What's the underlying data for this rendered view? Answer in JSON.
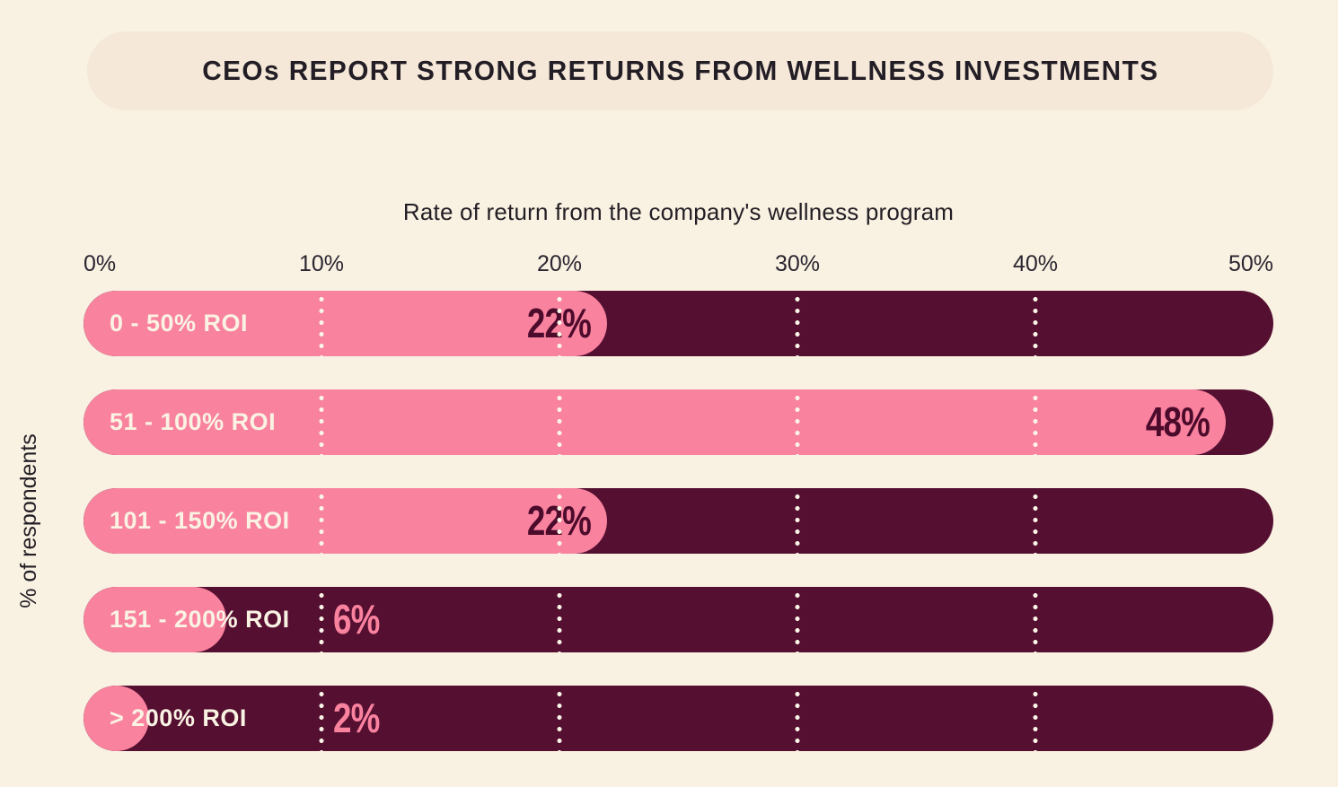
{
  "header": {
    "title": "CEOs REPORT STRONG RETURNS FROM WELLNESS INVESTMENTS"
  },
  "chart_data": {
    "type": "bar",
    "orientation": "horizontal",
    "title": "CEOs REPORT STRONG RETURNS FROM WELLNESS INVESTMENTS",
    "xlabel": "Rate of return from the company's wellness program",
    "ylabel": "% of respondents",
    "categories": [
      "0 - 50% ROI",
      "51 - 100% ROI",
      "101 - 150% ROI",
      "151 - 200% ROI",
      "> 200% ROI"
    ],
    "values": [
      22,
      48,
      22,
      6,
      2
    ],
    "value_labels": [
      "22%",
      "48%",
      "22%",
      "6%",
      "2%"
    ],
    "xlim": [
      0,
      50
    ],
    "x_ticks": [
      "0%",
      "10%",
      "20%",
      "30%",
      "40%",
      "50%"
    ],
    "grid": "vertical dotted white lines at 10%, 20%, 30%, 40%",
    "legend": "none",
    "colors": {
      "background": "#F9F2E2",
      "title_banner": "#F5E8D9",
      "bar_track": "#550F31",
      "bar_fill": "#F9829F",
      "category_text": "#FAF3E3",
      "value_text_inside": "#4D0B2C",
      "value_text_outside": "#F9829F",
      "axis_text": "#231E25",
      "gridline_dots": "#FBF5E8"
    }
  }
}
